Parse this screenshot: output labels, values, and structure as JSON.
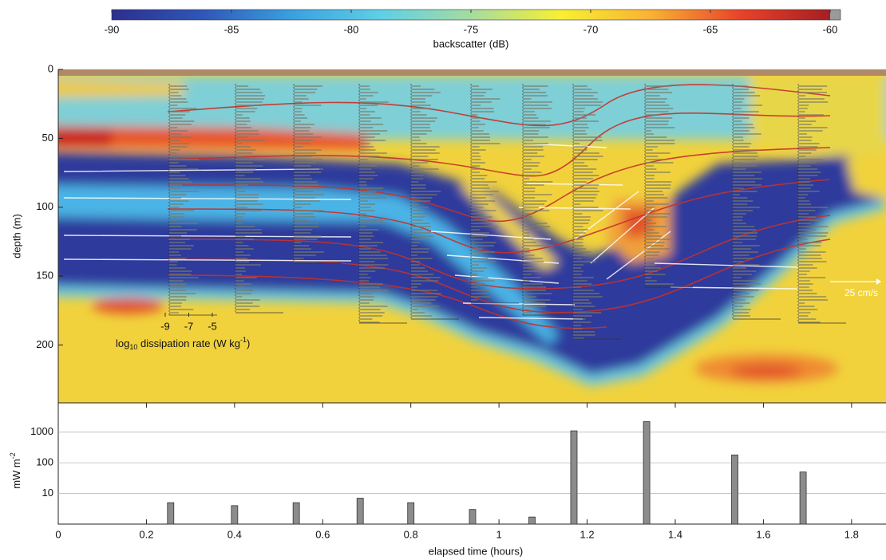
{
  "chart_data": [
    {
      "type": "heatmap",
      "colorbar": {
        "label": "backscatter (dB)",
        "clim": [
          -90,
          -60
        ],
        "cticks": [
          -90,
          -85,
          -80,
          -75,
          -70,
          -65,
          -60
        ],
        "colors": [
          "#2c2f8f",
          "#2f56b8",
          "#3aa0e0",
          "#5ed0e6",
          "#a6dba0",
          "#f7f032",
          "#f9b233",
          "#e8432a",
          "#a51e22"
        ],
        "over_color": "#9a9a9a"
      },
      "ylabel": "depth (m)",
      "ylim": [
        0,
        242
      ],
      "yticks": [
        0,
        50,
        100,
        150,
        200
      ],
      "inset_xticks": [
        -9,
        -7,
        -5
      ],
      "inset_label": [
        "log",
        "10",
        " dissipation rate (W kg",
        "-1",
        ")"
      ],
      "scale_arrow": "25 cm/s"
    },
    {
      "type": "bar",
      "x": [
        0.255,
        0.4,
        0.54,
        0.685,
        0.8,
        0.94,
        1.075,
        1.17,
        1.335,
        1.535,
        1.69
      ],
      "values": [
        5,
        4,
        5,
        7,
        5,
        3,
        1.7,
        1100,
        2200,
        180,
        50
      ],
      "color": "#8c8c8c",
      "ylog": true,
      "ylim": [
        1,
        9000
      ],
      "yticks": [
        10,
        100,
        1000
      ],
      "xlim": [
        0,
        1.88
      ],
      "xticks": [
        0,
        0.2,
        0.4,
        0.6,
        0.8,
        1,
        1.2,
        1.4,
        1.6,
        1.8
      ],
      "xlabel": "elapsed time (hours)",
      "ylabel": [
        "mW m",
        "-2"
      ],
      "grid": true
    }
  ]
}
